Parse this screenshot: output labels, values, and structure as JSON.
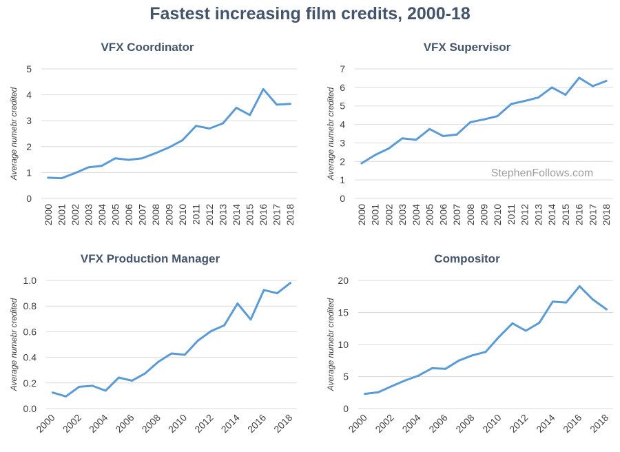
{
  "title": "Fastest increasing film credits, 2000-18",
  "watermark": "StephenFollows.com",
  "colors": {
    "line": "#5b9bd5",
    "grid": "#d9d9d9",
    "title": "#44546a",
    "text": "#404040"
  },
  "chart_data": [
    {
      "type": "line",
      "title": "VFX Coordinator",
      "ylabel": "Average numebr credited",
      "xlabel": "",
      "x": [
        "2000",
        "2001",
        "2002",
        "2003",
        "2004",
        "2005",
        "2006",
        "2007",
        "2008",
        "2009",
        "2010",
        "2011",
        "2012",
        "2013",
        "2014",
        "2015",
        "2016",
        "2017",
        "2018"
      ],
      "xtick_labels": [
        "2000",
        "2001",
        "2002",
        "2003",
        "2004",
        "2005",
        "2006",
        "2007",
        "2008",
        "2009",
        "2010",
        "2011",
        "2012",
        "2013",
        "2014",
        "2015",
        "2016",
        "2017",
        "2018"
      ],
      "values": [
        0.8,
        0.78,
        0.98,
        1.2,
        1.26,
        1.55,
        1.49,
        1.55,
        1.75,
        1.97,
        2.25,
        2.8,
        2.7,
        2.9,
        3.5,
        3.22,
        4.22,
        3.62,
        3.65
      ],
      "ylim": [
        0,
        5
      ],
      "yticks": [
        "0",
        "1",
        "2",
        "3",
        "4",
        "5"
      ],
      "grid": true
    },
    {
      "type": "line",
      "title": "VFX Supervisor",
      "ylabel": "Average numebr credited",
      "xlabel": "",
      "x": [
        "2000",
        "2001",
        "2002",
        "2003",
        "2004",
        "2005",
        "2006",
        "2007",
        "2008",
        "2009",
        "2010",
        "2011",
        "2012",
        "2013",
        "2014",
        "2015",
        "2016",
        "2017",
        "2018"
      ],
      "xtick_labels": [
        "2000",
        "2001",
        "2002",
        "2003",
        "2004",
        "2005",
        "2006",
        "2007",
        "2008",
        "2009",
        "2010",
        "2011",
        "2012",
        "2013",
        "2014",
        "2015",
        "2016",
        "2017",
        "2018"
      ],
      "values": [
        1.9,
        2.35,
        2.7,
        3.25,
        3.17,
        3.75,
        3.37,
        3.45,
        4.12,
        4.27,
        4.45,
        5.1,
        5.27,
        5.45,
        6.0,
        5.6,
        6.52,
        6.07,
        6.35
      ],
      "ylim": [
        0,
        7
      ],
      "yticks": [
        "0",
        "1",
        "2",
        "3",
        "4",
        "5",
        "6",
        "7"
      ],
      "grid": true
    },
    {
      "type": "line",
      "title": "VFX Production Manager",
      "ylabel": "Average numebr credited",
      "xlabel": "",
      "x": [
        "2000",
        "2001",
        "2002",
        "2003",
        "2004",
        "2005",
        "2006",
        "2007",
        "2008",
        "2009",
        "2010",
        "2011",
        "2012",
        "2013",
        "2014",
        "2015",
        "2016",
        "2017",
        "2018"
      ],
      "xtick_labels": [
        "2000",
        "",
        "2002",
        "",
        "2004",
        "",
        "2006",
        "",
        "2008",
        "",
        "2010",
        "",
        "2012",
        "",
        "2014",
        "",
        "2016",
        "",
        "2018"
      ],
      "values": [
        0.125,
        0.095,
        0.17,
        0.178,
        0.14,
        0.242,
        0.218,
        0.275,
        0.365,
        0.43,
        0.42,
        0.53,
        0.605,
        0.65,
        0.82,
        0.695,
        0.925,
        0.9,
        0.98
      ],
      "ylim": [
        0,
        1.0
      ],
      "yticks": [
        "0.0",
        "0.2",
        "0.4",
        "0.6",
        "0.8",
        "1.0"
      ],
      "grid": true
    },
    {
      "type": "line",
      "title": "Compositor",
      "ylabel": "Average numebr credited",
      "xlabel": "",
      "x": [
        "2000",
        "2001",
        "2002",
        "2003",
        "2004",
        "2005",
        "2006",
        "2007",
        "2008",
        "2009",
        "2010",
        "2011",
        "2012",
        "2013",
        "2014",
        "2015",
        "2016",
        "2017",
        "2018"
      ],
      "xtick_labels": [
        "2000",
        "",
        "2002",
        "",
        "2004",
        "",
        "2006",
        "",
        "2008",
        "",
        "2010",
        "",
        "2012",
        "",
        "2014",
        "",
        "2016",
        "",
        "2018"
      ],
      "values": [
        2.3,
        2.55,
        3.5,
        4.4,
        5.15,
        6.3,
        6.2,
        7.5,
        8.3,
        8.85,
        11.2,
        13.3,
        12.15,
        13.4,
        16.7,
        16.55,
        19.1,
        17.0,
        15.5
      ],
      "ylim": [
        0,
        20
      ],
      "yticks": [
        "0",
        "5",
        "10",
        "15",
        "20"
      ],
      "grid": true
    }
  ]
}
